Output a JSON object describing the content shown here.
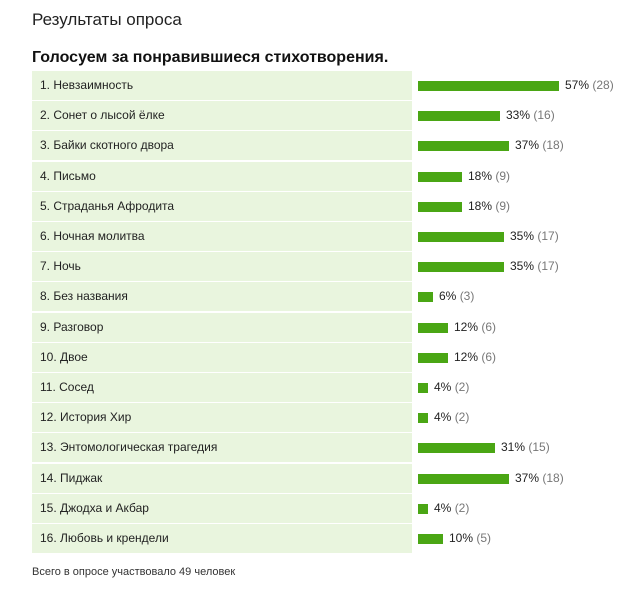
{
  "page": {
    "title": "Результаты опроса",
    "question": "Голосуем за понравившиеся стихотворения.",
    "footer": "Всего в опросе участвовало 49 человек"
  },
  "colors": {
    "bar": "#4aa614",
    "label_background": "#e9f5de"
  },
  "chart_data": {
    "type": "bar",
    "orientation": "horizontal",
    "title": "Голосуем за понравившиеся стихотворения.",
    "categories": [
      "1. Невзаимность",
      "2. Сонет о лысой ёлке",
      "3. Байки скотного двора",
      "4. Письмо",
      "5. Страданья Афродита",
      "6. Ночная молитва",
      "7. Ночь",
      "8. Без названия",
      "9. Разговор",
      "10. Двое",
      "11. Сосед",
      "12. История Хир",
      "13. Энтомологическая трагедия",
      "14. Пиджак",
      "15. Джодха и Акбар",
      "16. Любовь и крендели"
    ],
    "percent_labels": [
      "57%",
      "33%",
      "37%",
      "18%",
      "18%",
      "35%",
      "35%",
      "6%",
      "12%",
      "12%",
      "4%",
      "4%",
      "31%",
      "37%",
      "4%",
      "10%"
    ],
    "count_labels": [
      "(28)",
      "(16)",
      "(18)",
      "(9)",
      "(9)",
      "(17)",
      "(17)",
      "(3)",
      "(6)",
      "(6)",
      "(2)",
      "(2)",
      "(15)",
      "(18)",
      "(2)",
      "(5)"
    ],
    "values": [
      28,
      16,
      18,
      9,
      9,
      17,
      17,
      3,
      6,
      6,
      2,
      2,
      15,
      18,
      2,
      5
    ],
    "percents": [
      57,
      33,
      37,
      18,
      18,
      35,
      35,
      6,
      12,
      12,
      4,
      4,
      31,
      37,
      4,
      10
    ],
    "total": 49
  }
}
